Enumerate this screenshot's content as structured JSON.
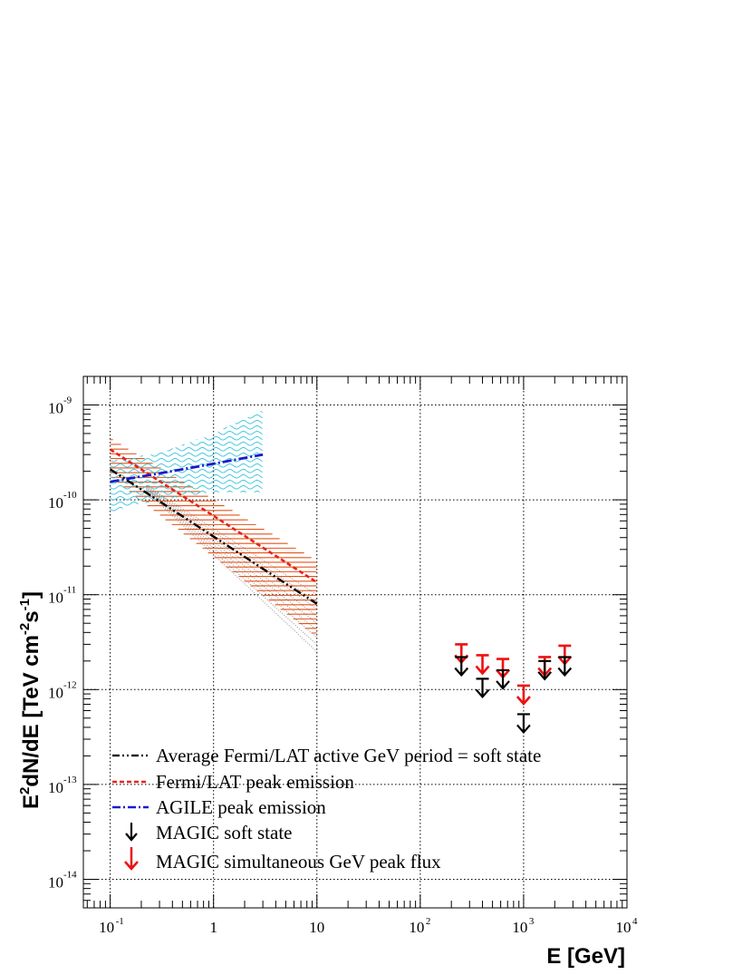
{
  "chart_data": {
    "type": "line",
    "xscale": "log",
    "yscale": "log",
    "xlim": [
      0.055,
      10000
    ],
    "ylim": [
      5e-15,
      2e-09
    ],
    "grid": true,
    "xlabel": "E [GeV]",
    "ylabel_parts": [
      "E",
      "2",
      "dN/dE [TeV cm",
      "-2",
      "s",
      "-1",
      "]"
    ],
    "x_tick_labels": [
      {
        "value": 0.1,
        "base": "10",
        "exp": "-1"
      },
      {
        "value": 1,
        "base": "1",
        "exp": ""
      },
      {
        "value": 10,
        "base": "10",
        "exp": ""
      },
      {
        "value": 100,
        "base": "10",
        "exp": "2"
      },
      {
        "value": 1000,
        "base": "10",
        "exp": "3"
      },
      {
        "value": 10000,
        "base": "10",
        "exp": "4"
      }
    ],
    "y_tick_labels": [
      {
        "value": 1e-09,
        "base": "10",
        "exp": "-9"
      },
      {
        "value": 1e-10,
        "base": "10",
        "exp": "-10"
      },
      {
        "value": 1e-11,
        "base": "10",
        "exp": "-11"
      },
      {
        "value": 1e-12,
        "base": "10",
        "exp": "-12"
      },
      {
        "value": 1e-13,
        "base": "10",
        "exp": "-13"
      },
      {
        "value": 1e-14,
        "base": "10",
        "exp": "-14"
      }
    ],
    "series": [
      {
        "name": "Average Fermi/LAT active GeV period = soft state",
        "style": "dash-dot-dot",
        "color": "#000000",
        "x": [
          0.1,
          10
        ],
        "y": [
          2.1e-10,
          8e-12
        ],
        "band": {
          "color": "#9a9a9a",
          "style": "dotted-lines",
          "upper_end": 1e-11,
          "lower_end": 2.5e-12
        }
      },
      {
        "name": "Fermi/LAT peak emission",
        "style": "dashed",
        "color": "#e8231a",
        "x": [
          0.1,
          10
        ],
        "y": [
          3.4e-10,
          1.35e-11
        ],
        "band": {
          "color": "#e5531a",
          "style": "horizontal-hatch",
          "upper": [
            4.5e-10,
            2.3e-11
          ],
          "lower": [
            1.75e-10,
            3.5e-12
          ]
        }
      },
      {
        "name": "AGILE peak emission",
        "style": "dash-dot",
        "color": "#1a1acc",
        "x": [
          0.1,
          0.3,
          1,
          3
        ],
        "y": [
          1.55e-10,
          1.9e-10,
          2.4e-10,
          3e-10
        ],
        "band": {
          "color": "#35c3dc",
          "style": "wavy-hatch",
          "upper": [
            [
              0.1,
              2.6e-10
            ],
            [
              0.3,
              3.1e-10
            ],
            [
              1,
              5e-10
            ],
            [
              3,
              9e-10
            ]
          ],
          "lower": [
            [
              0.1,
              7.5e-11
            ],
            [
              0.3,
              1e-10
            ],
            [
              1,
              1.2e-10
            ],
            [
              3,
              1.2e-10
            ]
          ]
        }
      },
      {
        "name": "MAGIC soft state",
        "type": "upper-limit",
        "color": "#000000",
        "x": [
          250,
          400,
          630,
          1000,
          1600,
          2500
        ],
        "y": [
          2.2e-12,
          1.3e-12,
          1.6e-12,
          5.5e-13,
          2e-12,
          2.2e-12
        ]
      },
      {
        "name": "MAGIC simultaneous GeV peak flux",
        "type": "upper-limit",
        "color": "#ee1111",
        "x": [
          250,
          400,
          630,
          1000,
          1600,
          2500
        ],
        "y": [
          3e-12,
          2.3e-12,
          2.1e-12,
          1.1e-12,
          2.2e-12,
          2.9e-12
        ]
      }
    ]
  }
}
